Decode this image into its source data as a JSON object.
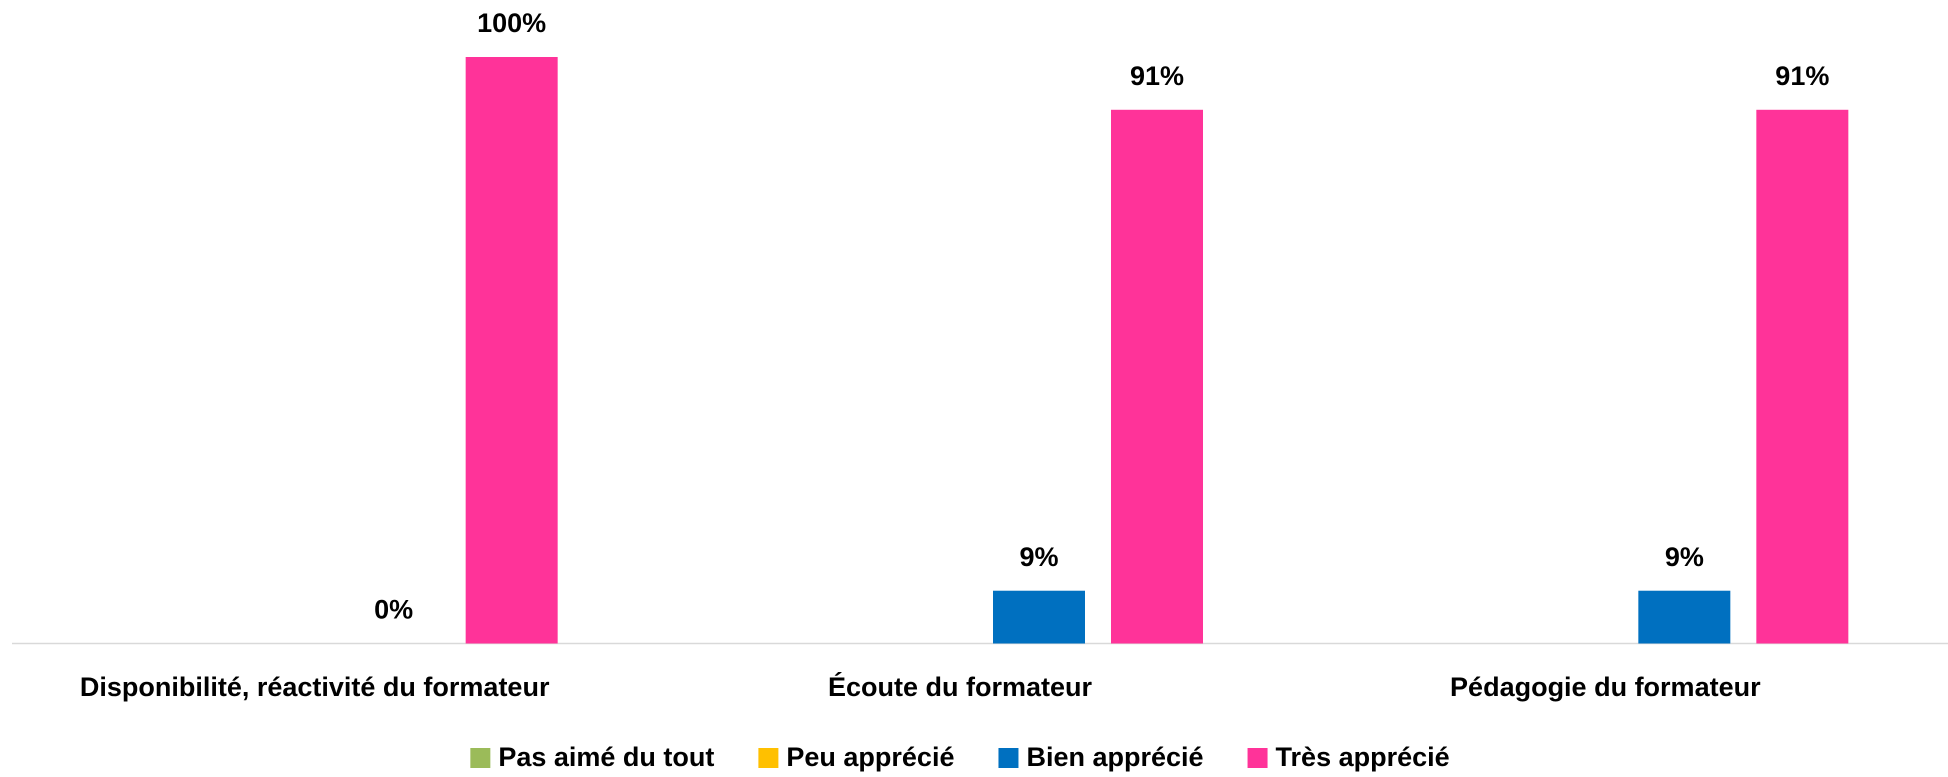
{
  "chart_data": {
    "type": "bar",
    "categories": [
      "Disponibilité, réactivité du formateur",
      "Écoute du formateur",
      "Pédagogie du formateur"
    ],
    "series": [
      {
        "name": "Pas aimé du tout",
        "color": "#9bbb59",
        "values": [
          null,
          null,
          null
        ]
      },
      {
        "name": "Peu apprécié",
        "color": "#ffc000",
        "values": [
          null,
          null,
          null
        ]
      },
      {
        "name": "Bien apprécié",
        "color": "#0070c0",
        "values": [
          0,
          9,
          9
        ],
        "value_labels": [
          "0%",
          "9%",
          "9%"
        ]
      },
      {
        "name": "Très apprécié",
        "color": "#ff3399",
        "values": [
          100,
          91,
          91
        ],
        "value_labels": [
          "100%",
          "91%",
          "91%"
        ]
      }
    ],
    "ylim": [
      0,
      100
    ],
    "legend": "bottom"
  }
}
